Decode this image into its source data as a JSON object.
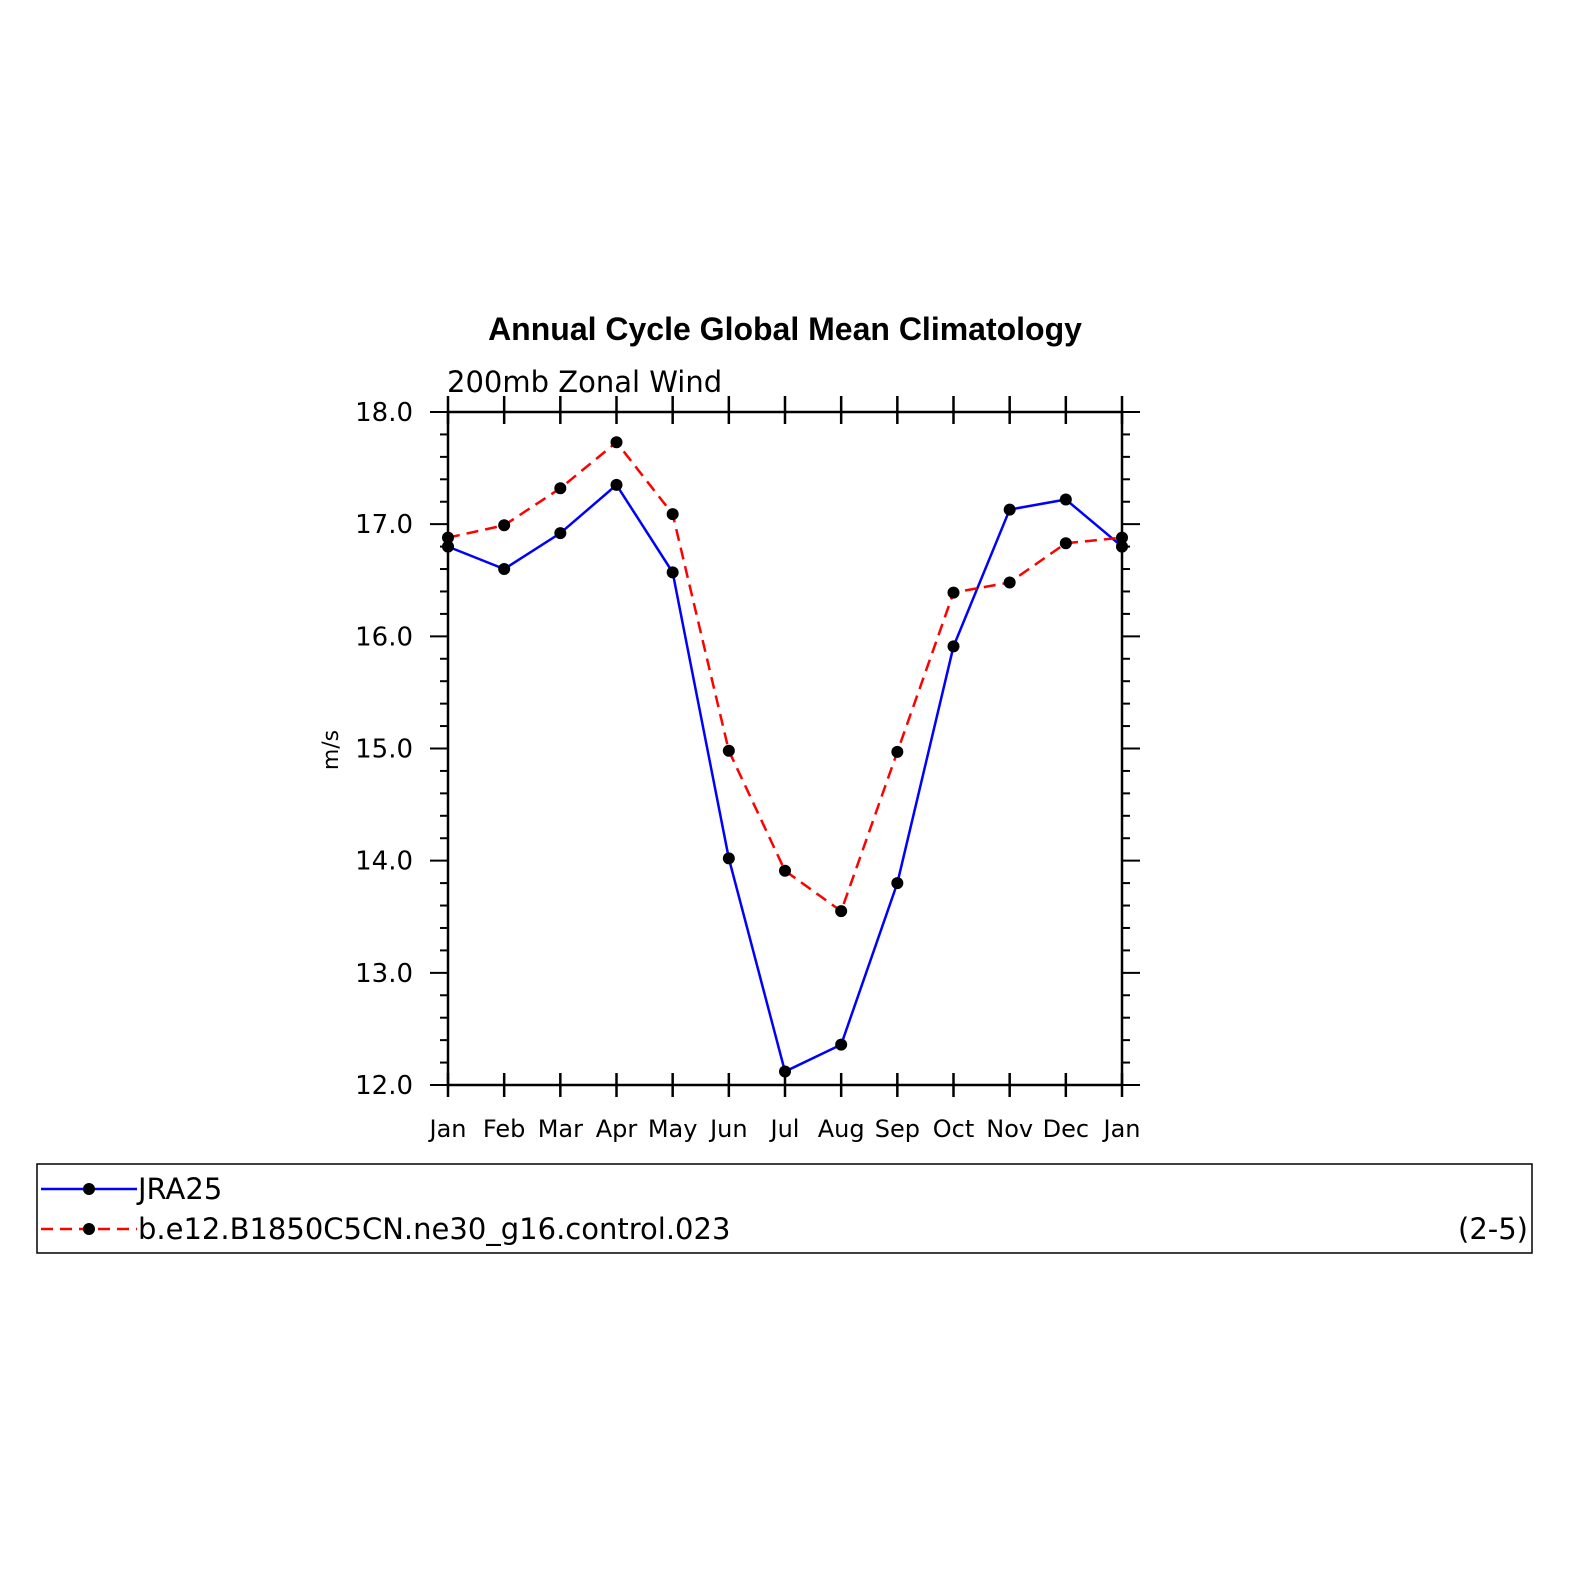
{
  "chart_data": {
    "type": "line",
    "title": "Annual Cycle Global Mean Climatology",
    "subtitle": "200mb Zonal Wind",
    "ylabel": "m/s",
    "xlabel": "",
    "categories": [
      "Jan",
      "Feb",
      "Mar",
      "Apr",
      "May",
      "Jun",
      "Jul",
      "Aug",
      "Sep",
      "Oct",
      "Nov",
      "Dec",
      "Jan"
    ],
    "ylim": [
      12.0,
      18.0
    ],
    "yticks": [
      "12.0",
      "13.0",
      "14.0",
      "15.0",
      "16.0",
      "17.0",
      "18.0"
    ],
    "grid": false,
    "legend_position": "bottom",
    "series": [
      {
        "name": "JRA25",
        "color": "#0000ff",
        "dash": "solid",
        "values": [
          16.8,
          16.6,
          16.92,
          17.35,
          16.57,
          14.02,
          12.12,
          12.36,
          13.8,
          15.91,
          17.13,
          17.22,
          16.8
        ]
      },
      {
        "name": "b.e12.B1850C5CN.ne30_g16.control.023",
        "color": "#ff0000",
        "dash": "dashed",
        "values": [
          16.88,
          16.99,
          17.32,
          17.73,
          17.09,
          14.98,
          13.91,
          13.55,
          14.97,
          16.39,
          16.48,
          16.83,
          16.88
        ]
      }
    ],
    "panel_label": "(2-5)"
  }
}
